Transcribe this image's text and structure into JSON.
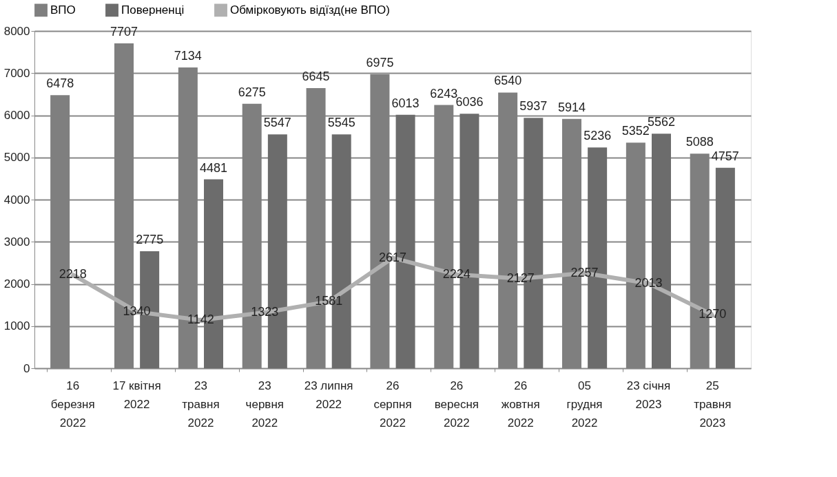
{
  "chart_data": {
    "type": "bar",
    "categories": [
      "16\nберезня\n2022",
      "17 квітня\n2022",
      "23\nтравня\n2022",
      "23\nчервня\n2022",
      "23 липня\n2022",
      "26\nсерпня\n2022",
      "26\nвересня\n2022",
      "26\nжовтня\n2022",
      "05\nгрудня\n2022",
      "23 січня\n2023",
      "25\nтравня\n2023"
    ],
    "series": [
      {
        "name": "ВПО",
        "color": "#7f7f7f",
        "values": [
          6478,
          7707,
          7134,
          6275,
          6645,
          6975,
          6243,
          6540,
          5914,
          5352,
          5088
        ]
      },
      {
        "name": "Поверненці",
        "color": "#6c6c6c",
        "values": [
          null,
          2775,
          4481,
          5547,
          5545,
          6013,
          6036,
          5937,
          5236,
          5562,
          4757
        ]
      },
      {
        "name": "Обмірковують відїзд(не ВПО)",
        "type": "line",
        "color": "#b0b0b0",
        "marker": "triangle",
        "values": [
          2218,
          1340,
          1142,
          1323,
          1581,
          2617,
          2224,
          2127,
          2257,
          2013,
          1270
        ]
      }
    ],
    "ylim": [
      0,
      8000
    ],
    "yticks": [
      0,
      1000,
      2000,
      3000,
      4000,
      5000,
      6000,
      7000,
      8000
    ],
    "grid": "y",
    "legend": "top",
    "data_labels": true
  }
}
